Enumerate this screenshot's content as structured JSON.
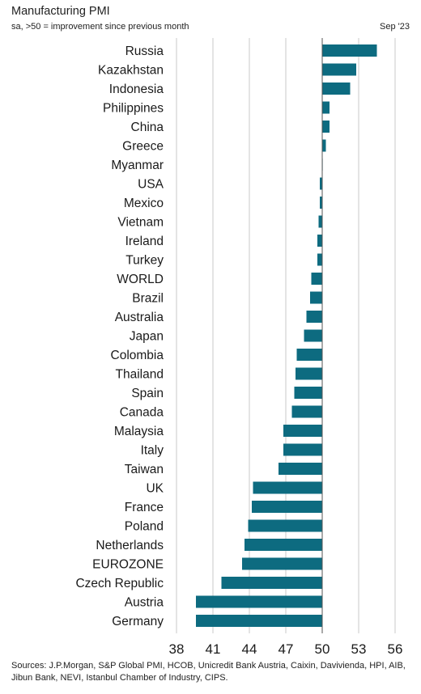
{
  "title": "Manufacturing PMI",
  "subtitle": "sa, >50 = improvement since previous month",
  "period": "Sep '23",
  "source": "Sources: J.P.Morgan, S&P Global PMI, HCOB, Unicredit Bank Austria, Caixin, Davivienda, HPI, AIB, Jibun Bank, NEVI, Istanbul Chamber of Industry, CIPS.",
  "colors": {
    "bar": "#0d6b80",
    "grid": "#c8c8c8",
    "axis": "#555555"
  },
  "chart_data": {
    "type": "bar",
    "orientation": "horizontal",
    "baseline": 50,
    "xlim": [
      38,
      56
    ],
    "xticks": [
      38,
      41,
      44,
      47,
      50,
      53,
      56
    ],
    "grid": true,
    "categories": [
      "Russia",
      "Kazakhstan",
      "Indonesia",
      "Philippines",
      "China",
      "Greece",
      "Myanmar",
      "USA",
      "Mexico",
      "Vietnam",
      "Ireland",
      "Turkey",
      "WORLD",
      "Brazil",
      "Australia",
      "Japan",
      "Colombia",
      "Thailand",
      "Spain",
      "Canada",
      "Malaysia",
      "Italy",
      "Taiwan",
      "UK",
      "France",
      "Poland",
      "Netherlands",
      "EUROZONE",
      "Czech Republic",
      "Austria",
      "Germany"
    ],
    "values": [
      54.5,
      52.8,
      52.3,
      50.6,
      50.6,
      50.3,
      50.0,
      49.8,
      49.8,
      49.7,
      49.6,
      49.6,
      49.1,
      49.0,
      48.7,
      48.5,
      47.9,
      47.8,
      47.7,
      47.5,
      46.8,
      46.8,
      46.4,
      44.3,
      44.2,
      43.9,
      43.6,
      43.4,
      41.7,
      39.6,
      39.6
    ]
  }
}
